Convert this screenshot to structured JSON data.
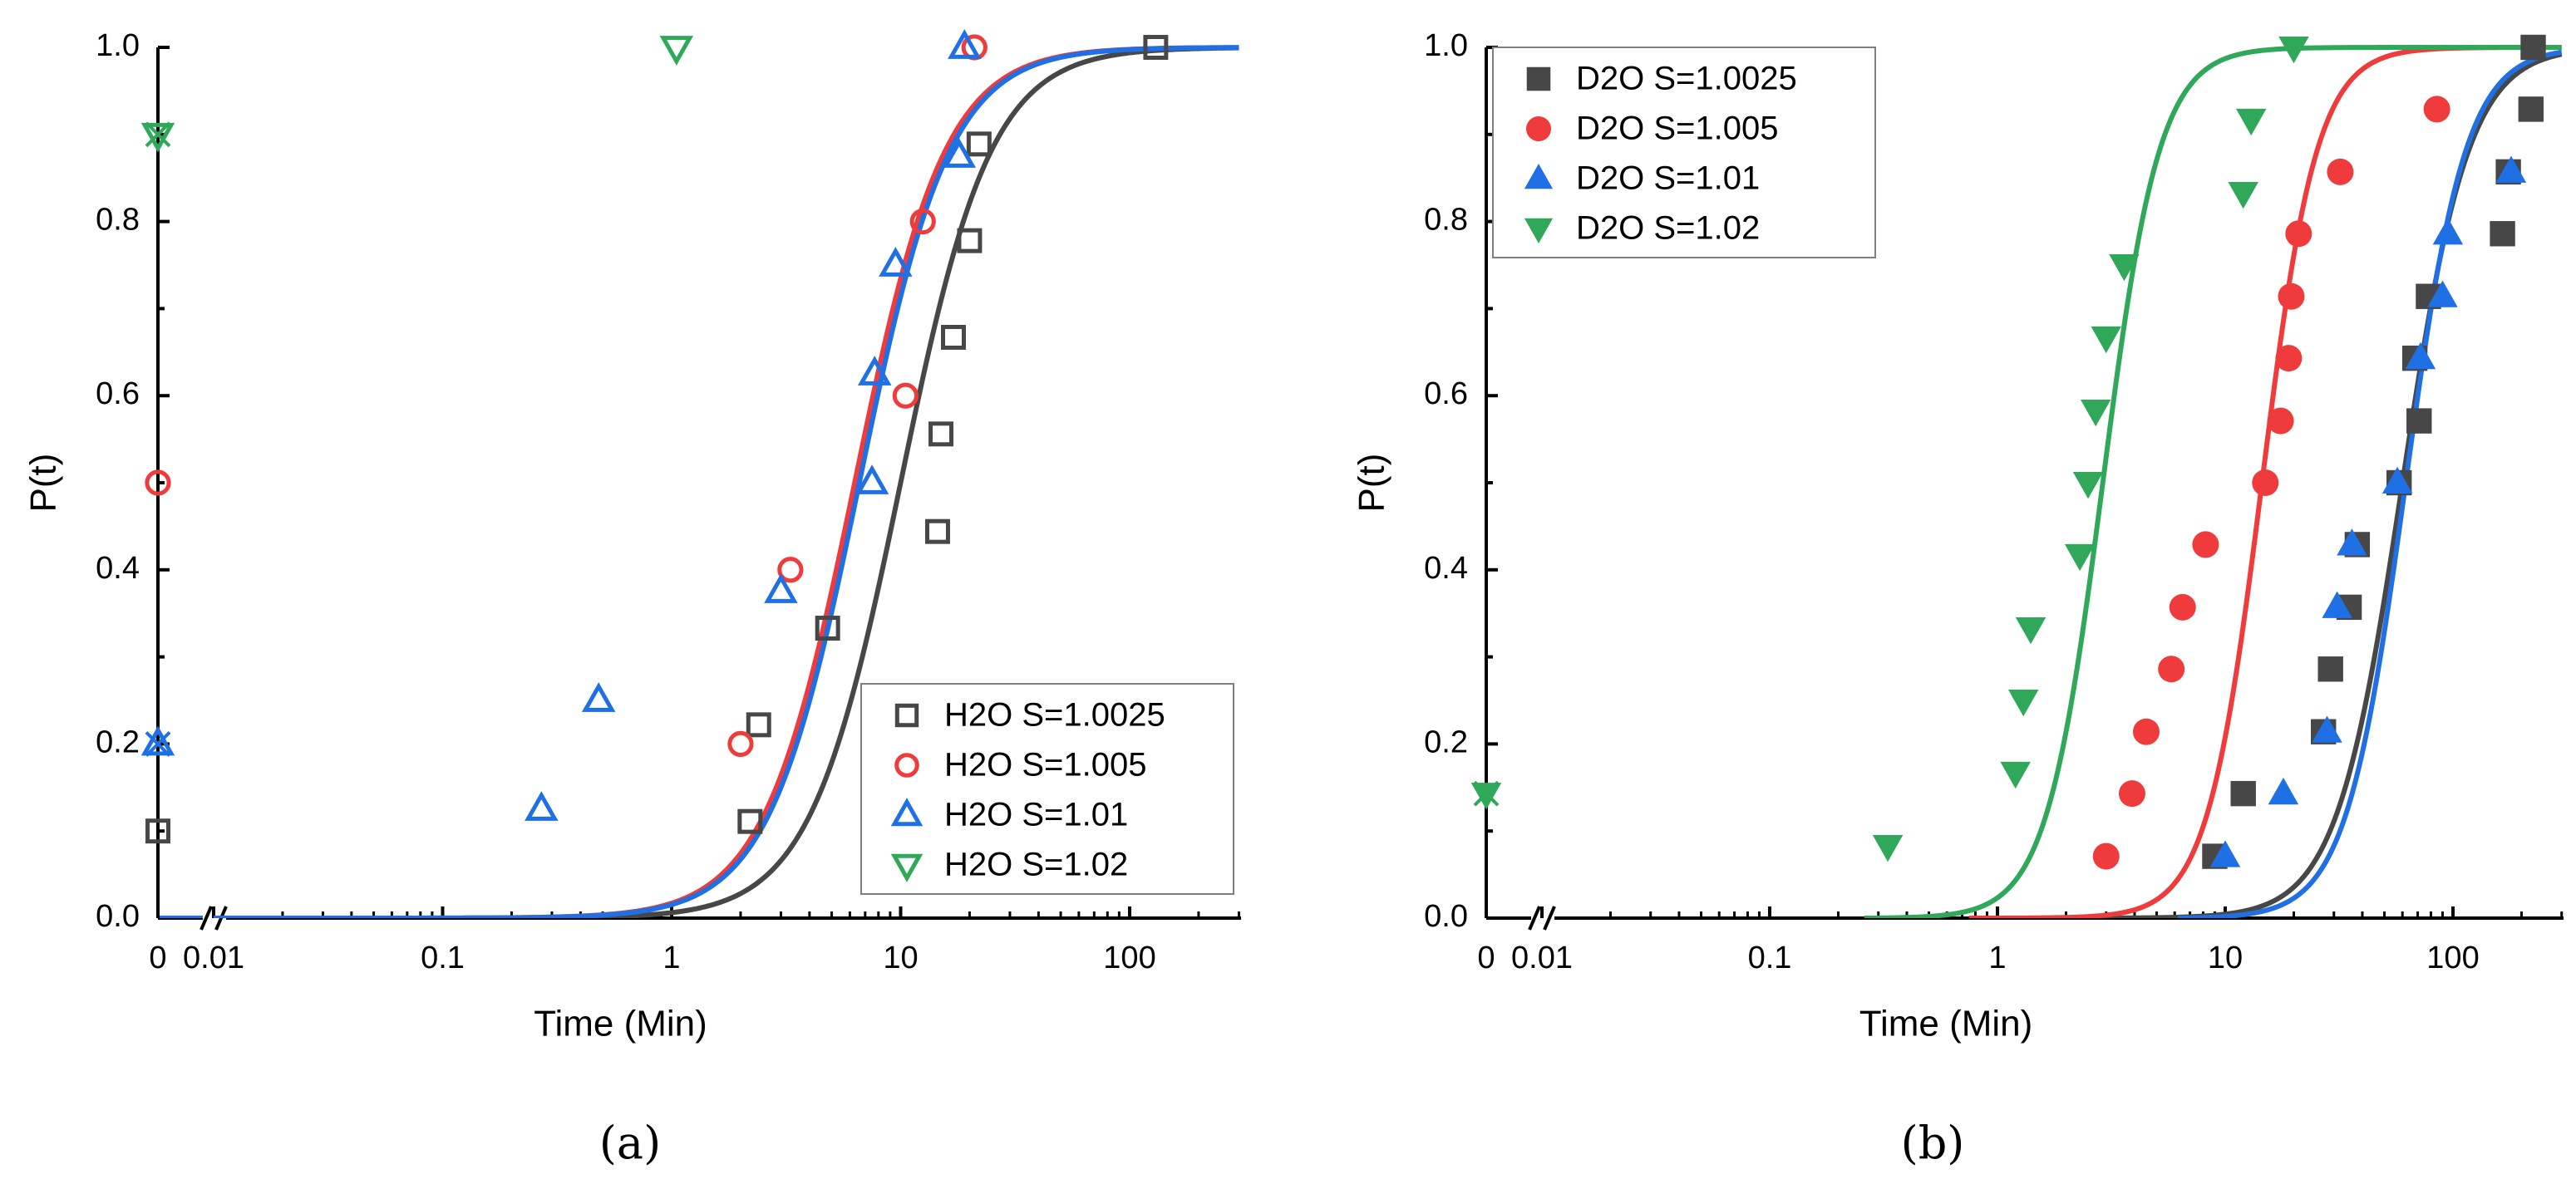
{
  "chart_data": [
    {
      "type": "scatter",
      "panel_caption": "(a)",
      "xlabel": "Time (Min)",
      "ylabel": "P(t)",
      "x_scale": "log with broken axis at zero",
      "xlim": [
        0.01,
        300
      ],
      "ylim": [
        0.0,
        1.0
      ],
      "x_tick_labels": [
        "0",
        "0.01",
        "0.1",
        "1",
        "10",
        "100"
      ],
      "y_tick_labels": [
        "0.0",
        "0.2",
        "0.4",
        "0.6",
        "0.8",
        "1.0"
      ],
      "legend_position": "bottom-right",
      "series": [
        {
          "name": "H2O S=1.0025",
          "marker": "open-square",
          "color": "#474747",
          "zero_points": [
            0.1
          ],
          "points": [
            [
              2.2,
              0.111
            ],
            [
              2.4,
              0.222
            ],
            [
              4.8,
              0.333
            ],
            [
              14.5,
              0.444
            ],
            [
              15.0,
              0.556
            ],
            [
              17.0,
              0.667
            ],
            [
              20.0,
              0.778
            ],
            [
              22.0,
              0.889
            ],
            [
              130.0,
              1.0
            ]
          ],
          "fit_median": 10.0,
          "fit_slope": 2.2
        },
        {
          "name": "H2O S=1.005",
          "marker": "open-circle",
          "color": "#ef3b3b",
          "zero_points": [
            0.5
          ],
          "points": [
            [
              2.0,
              0.2
            ],
            [
              3.3,
              0.4
            ],
            [
              10.5,
              0.6
            ],
            [
              12.5,
              0.8
            ],
            [
              21.0,
              1.0
            ]
          ],
          "fit_median": 6.3,
          "fit_slope": 2.2
        },
        {
          "name": "H2O S=1.01",
          "marker": "open-triangle-up",
          "color": "#1f6fe5",
          "zero_points": [
            0.2
          ],
          "points": [
            [
              0.27,
              0.125
            ],
            [
              0.48,
              0.25
            ],
            [
              3.0,
              0.375
            ],
            [
              7.5,
              0.5
            ],
            [
              7.7,
              0.625
            ],
            [
              9.5,
              0.75
            ],
            [
              18.0,
              0.875
            ],
            [
              19.0,
              1.0
            ]
          ],
          "fit_median": 6.6,
          "fit_slope": 2.2
        },
        {
          "name": "H2O S=1.02",
          "marker": "open-triangle-down",
          "color": "#2fa85a",
          "zero_points": [
            0.9
          ],
          "points": [
            [
              1.05,
              1.0
            ]
          ],
          "fit_median": null,
          "fit_slope": null
        }
      ]
    },
    {
      "type": "scatter",
      "panel_caption": "(b)",
      "xlabel": "Time (Min)",
      "ylabel": "P(t)",
      "x_scale": "log with broken axis at zero",
      "xlim": [
        0.01,
        300
      ],
      "ylim": [
        0.0,
        1.0
      ],
      "x_tick_labels": [
        "0",
        "0.01",
        "0.1",
        "1",
        "10",
        "100"
      ],
      "y_tick_labels": [
        "0.0",
        "0.2",
        "0.4",
        "0.6",
        "0.8",
        "1.0"
      ],
      "legend_position": "top-left",
      "series": [
        {
          "name": "D2O S=1.0025",
          "marker": "filled-square",
          "color": "#474747",
          "zero_points": [],
          "points": [
            [
              9.0,
              0.071
            ],
            [
              12.0,
              0.143
            ],
            [
              27.0,
              0.214
            ],
            [
              29.0,
              0.286
            ],
            [
              35.0,
              0.357
            ],
            [
              38.0,
              0.429
            ],
            [
              58.0,
              0.5
            ],
            [
              71.0,
              0.571
            ],
            [
              68.0,
              0.643
            ],
            [
              78.0,
              0.714
            ],
            [
              165.0,
              0.786
            ],
            [
              175.0,
              0.857
            ],
            [
              220.0,
              0.929
            ],
            [
              225.0,
              1.0
            ]
          ],
          "fit_median": 60.0,
          "fit_slope": 3.0,
          "fit_start": 2.4
        },
        {
          "name": "D2O S=1.005",
          "marker": "filled-circle",
          "color": "#ef3b3b",
          "zero_points": [],
          "points": [
            [
              3.0,
              0.071
            ],
            [
              3.9,
              0.143
            ],
            [
              4.5,
              0.214
            ],
            [
              5.8,
              0.286
            ],
            [
              6.5,
              0.357
            ],
            [
              8.2,
              0.429
            ],
            [
              15.0,
              0.5
            ],
            [
              17.5,
              0.571
            ],
            [
              19.0,
              0.643
            ],
            [
              19.5,
              0.714
            ],
            [
              21.0,
              0.786
            ],
            [
              32.0,
              0.857
            ],
            [
              85.0,
              0.929
            ]
          ],
          "fit_median": 14.5,
          "fit_slope": 3.6,
          "fit_start": 0.75
        },
        {
          "name": "D2O S=1.01",
          "marker": "filled-triangle-up",
          "color": "#1f6fe5",
          "zero_points": [],
          "points": [
            [
              10.0,
              0.071
            ],
            [
              18.0,
              0.143
            ],
            [
              28.0,
              0.214
            ],
            [
              31.0,
              0.357
            ],
            [
              36.0,
              0.429
            ],
            [
              57.0,
              0.5
            ],
            [
              72.0,
              0.643
            ],
            [
              90.0,
              0.714
            ],
            [
              95.0,
              0.786
            ],
            [
              180.0,
              0.857
            ]
          ],
          "fit_median": 62.0,
          "fit_slope": 3.3,
          "fit_start": 6.2
        },
        {
          "name": "D2O S=1.02",
          "marker": "filled-triangle-down",
          "color": "#2fa85a",
          "zero_points": [
            0.143
          ],
          "points": [
            [
              0.33,
              0.083
            ],
            [
              1.2,
              0.167
            ],
            [
              1.3,
              0.25
            ],
            [
              1.4,
              0.333
            ],
            [
              2.3,
              0.417
            ],
            [
              2.5,
              0.5
            ],
            [
              2.7,
              0.583
            ],
            [
              3.0,
              0.667
            ],
            [
              3.6,
              0.75
            ],
            [
              12.0,
              0.833
            ],
            [
              13.0,
              0.917
            ],
            [
              20.0,
              1.0
            ]
          ],
          "fit_median": 2.9,
          "fit_slope": 3.5,
          "fit_start": 0.26
        }
      ]
    }
  ]
}
